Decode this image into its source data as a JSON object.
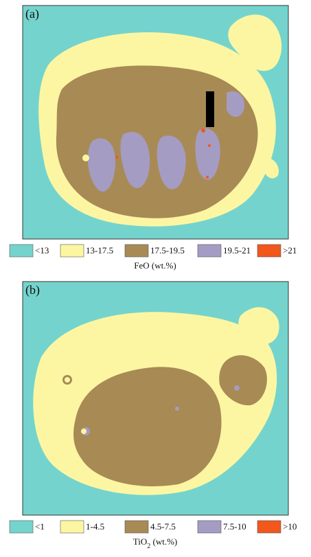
{
  "panels": [
    {
      "label": "(a)",
      "legend": [
        {
          "label": "<13",
          "color": "#74d4cd"
        },
        {
          "label": "13-17.5",
          "color": "#fcf6a3"
        },
        {
          "label": "17.5-19.5",
          "color": "#a88a55"
        },
        {
          "label": "19.5-21",
          "color": "#a49cc2"
        },
        {
          "label": ">21",
          "color": "#f2571c"
        }
      ],
      "caption": [
        "FeO (wt.%)"
      ]
    },
    {
      "label": "(b)",
      "legend": [
        {
          "label": "<1",
          "color": "#74d4cd"
        },
        {
          "label": "1-4.5",
          "color": "#fcf6a3"
        },
        {
          "label": "4.5-7.5",
          "color": "#a88a55"
        },
        {
          "label": "7.5-10",
          "color": "#a49cc2"
        },
        {
          "label": ">10",
          "color": "#f2571c"
        }
      ],
      "caption": [
        "TiO",
        "2",
        " (wt.%)"
      ]
    }
  ]
}
